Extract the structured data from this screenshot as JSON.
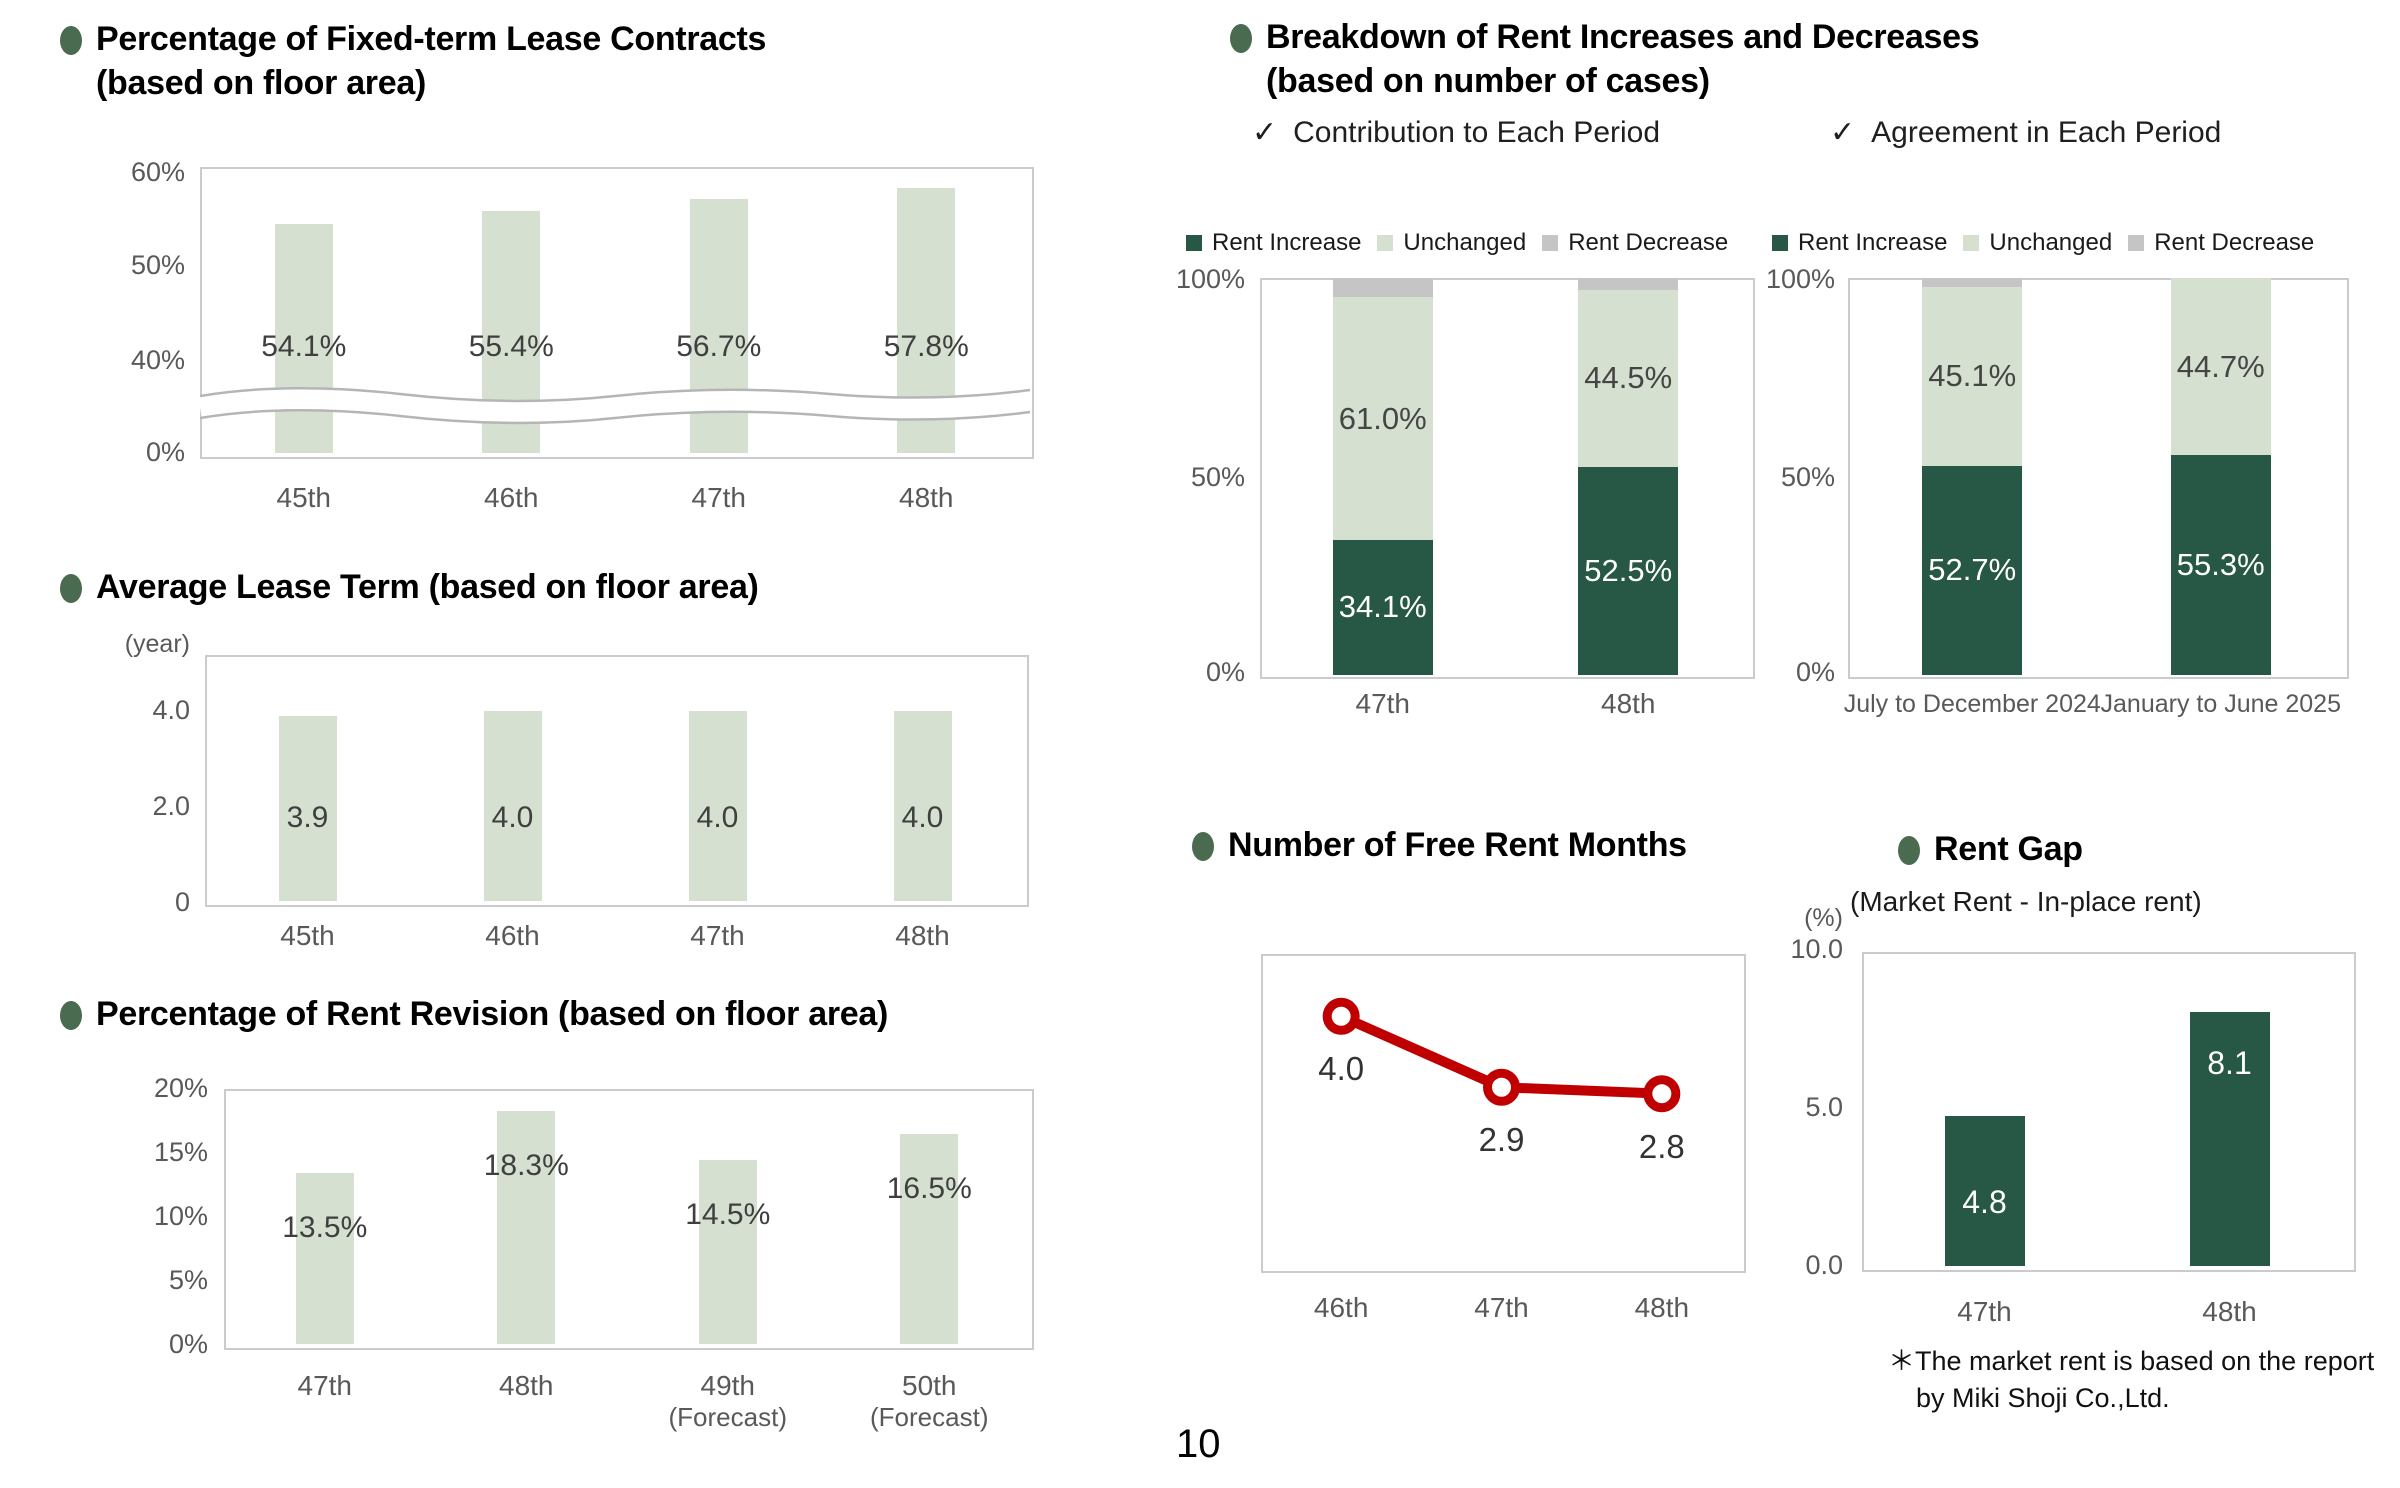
{
  "page": {
    "number": "10"
  },
  "colors": {
    "dark_green": "#275745",
    "light_green": "#d6e0d1",
    "decrease_gray": "#c5c5c5",
    "line_red": "#c00000",
    "bullet_green": "#4a6b4f"
  },
  "sections": {
    "breakdown": {
      "title_line1": "Breakdown of Rent Increases and Decreases",
      "title_line2": "(based on number of cases)",
      "checkmark": "✓",
      "check1": "Contribution to Each Period",
      "check2": "Agreement in Each Period"
    }
  },
  "chart_data": [
    {
      "id": "fixed_term_lease",
      "type": "bar",
      "title_line1": "Percentage of Fixed-term Lease Contracts",
      "title_line2": "(based on floor area)",
      "categories": [
        "45th",
        "46th",
        "47th",
        "48th"
      ],
      "values": [
        54.1,
        55.4,
        56.7,
        57.8
      ],
      "data_labels": [
        "54.1%",
        "55.4%",
        "56.7%",
        "57.8%"
      ],
      "y_ticks": [
        "60%",
        "50%",
        "40%",
        "0%"
      ],
      "ylim": [
        0,
        60
      ],
      "axis_break": true
    },
    {
      "id": "average_lease_term",
      "type": "bar",
      "title": "Average Lease Term (based on floor area)",
      "unit_label": "(year)",
      "categories": [
        "45th",
        "46th",
        "47th",
        "48th"
      ],
      "values": [
        3.9,
        4.0,
        4.0,
        4.0
      ],
      "data_labels": [
        "3.9",
        "4.0",
        "4.0",
        "4.0"
      ],
      "y_ticks": [
        "4.0",
        "2.0",
        "0"
      ],
      "ylim": [
        0,
        5.2
      ]
    },
    {
      "id": "rent_revision",
      "type": "bar",
      "title": "Percentage of Rent Revision (based on floor area)",
      "categories": [
        "47th",
        "48th",
        "49th",
        "50th"
      ],
      "category_notes": [
        "",
        "",
        "(Forecast)",
        "(Forecast)"
      ],
      "values": [
        13.5,
        18.3,
        14.5,
        16.5
      ],
      "data_labels": [
        "13.5%",
        "18.3%",
        "14.5%",
        "16.5%"
      ],
      "y_ticks": [
        "20%",
        "15%",
        "10%",
        "5%",
        "0%"
      ],
      "ylim": [
        0,
        20
      ]
    },
    {
      "id": "contribution_to_each_period",
      "type": "stacked-bar",
      "title": "Contribution to Each Period",
      "legend": [
        "Rent Increase",
        "Unchanged",
        "Rent Decrease"
      ],
      "categories": [
        "47th",
        "48th"
      ],
      "series": [
        {
          "name": "Rent Increase",
          "values": [
            34.1,
            52.5
          ]
        },
        {
          "name": "Unchanged",
          "values": [
            61.0,
            44.5
          ]
        },
        {
          "name": "Rent Decrease",
          "values": [
            4.9,
            3.0
          ]
        }
      ],
      "increase_labels": [
        "34.1%",
        "52.5%"
      ],
      "unchanged_labels": [
        "61.0%",
        "44.5%"
      ],
      "y_ticks": [
        "100%",
        "50%",
        "0%"
      ],
      "ylim": [
        0,
        100
      ]
    },
    {
      "id": "agreement_in_each_period",
      "type": "stacked-bar",
      "title": "Agreement in Each Period",
      "legend": [
        "Rent Increase",
        "Unchanged",
        "Rent Decrease"
      ],
      "categories": [
        "July to December 2024",
        "January to June 2025"
      ],
      "series": [
        {
          "name": "Rent Increase",
          "values": [
            52.7,
            55.3
          ]
        },
        {
          "name": "Unchanged",
          "values": [
            45.1,
            44.7
          ]
        },
        {
          "name": "Rent Decrease",
          "values": [
            2.2,
            0.0
          ]
        }
      ],
      "increase_labels": [
        "52.7%",
        "55.3%"
      ],
      "unchanged_labels": [
        "45.1%",
        "44.7%"
      ],
      "y_ticks": [
        "100%",
        "50%",
        "0%"
      ],
      "ylim": [
        0,
        100
      ]
    },
    {
      "id": "free_rent_months",
      "type": "line",
      "title": "Number of Free Rent Months",
      "categories": [
        "46th",
        "47th",
        "48th"
      ],
      "values": [
        4.0,
        2.9,
        2.8
      ],
      "data_labels": [
        "4.0",
        "2.9",
        "2.8"
      ]
    },
    {
      "id": "rent_gap",
      "type": "bar",
      "title": "Rent Gap",
      "subtitle": "(Market Rent - In-place rent)",
      "unit_label": "(%)",
      "categories": [
        "47th",
        "48th"
      ],
      "values": [
        4.8,
        8.1
      ],
      "data_labels": [
        "4.8",
        "8.1"
      ],
      "y_ticks": [
        "10.0",
        "5.0",
        "0.0"
      ],
      "ylim": [
        0,
        10
      ],
      "footnote_line1": "＊The market rent is based on the report",
      "footnote_line2": "by Miki Shoji Co.,Ltd."
    }
  ]
}
